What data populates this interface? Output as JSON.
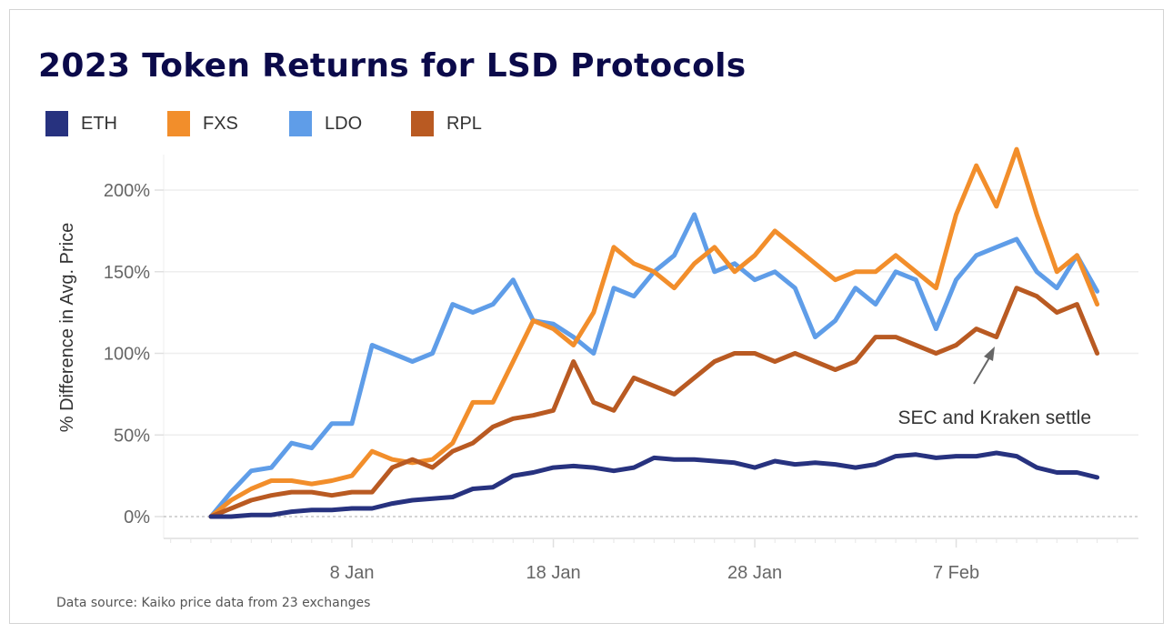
{
  "title": "2023 Token Returns for LSD Protocols",
  "source": "Data source: Kaiko price data from 23 exchanges",
  "chart_data": {
    "type": "line",
    "title": "2023 Token Returns for LSD Protocols",
    "xlabel": "",
    "ylabel": "% Difference in Avg. Price",
    "x_start": "2023-01-01",
    "x_end": "2023-02-14",
    "x_ticks": [
      {
        "date": "2023-01-08",
        "label": "8 Jan"
      },
      {
        "date": "2023-01-18",
        "label": "18 Jan"
      },
      {
        "date": "2023-01-28",
        "label": "28 Jan"
      },
      {
        "date": "2023-02-07",
        "label": "7 Feb"
      }
    ],
    "y_ticks": [
      {
        "value": 0,
        "label": "0%"
      },
      {
        "value": 50,
        "label": "50%"
      },
      {
        "value": 100,
        "label": "100%"
      },
      {
        "value": 150,
        "label": "150%"
      },
      {
        "value": 200,
        "label": "200%"
      }
    ],
    "ylim": [
      -15,
      230
    ],
    "grid": true,
    "legend_placement": "top-left",
    "x": [
      "2023-01-01",
      "2023-01-02",
      "2023-01-03",
      "2023-01-04",
      "2023-01-05",
      "2023-01-06",
      "2023-01-07",
      "2023-01-08",
      "2023-01-09",
      "2023-01-10",
      "2023-01-11",
      "2023-01-12",
      "2023-01-13",
      "2023-01-14",
      "2023-01-15",
      "2023-01-16",
      "2023-01-17",
      "2023-01-18",
      "2023-01-19",
      "2023-01-20",
      "2023-01-21",
      "2023-01-22",
      "2023-01-23",
      "2023-01-24",
      "2023-01-25",
      "2023-01-26",
      "2023-01-27",
      "2023-01-28",
      "2023-01-29",
      "2023-01-30",
      "2023-01-31",
      "2023-02-01",
      "2023-02-02",
      "2023-02-03",
      "2023-02-04",
      "2023-02-05",
      "2023-02-06",
      "2023-02-07",
      "2023-02-08",
      "2023-02-09",
      "2023-02-10",
      "2023-02-11",
      "2023-02-12",
      "2023-02-13",
      "2023-02-14"
    ],
    "series": [
      {
        "name": "ETH",
        "color": "#27327f",
        "values": [
          0,
          0,
          1,
          1,
          3,
          4,
          4,
          5,
          5,
          8,
          10,
          11,
          12,
          17,
          18,
          25,
          27,
          30,
          31,
          30,
          28,
          30,
          36,
          35,
          35,
          34,
          33,
          30,
          34,
          32,
          33,
          32,
          30,
          32,
          37,
          38,
          36,
          37,
          37,
          39,
          37,
          30,
          27,
          27,
          24
        ]
      },
      {
        "name": "FXS",
        "color": "#f28e2b",
        "values": [
          0,
          10,
          17,
          22,
          22,
          20,
          22,
          25,
          40,
          35,
          33,
          35,
          45,
          70,
          70,
          95,
          120,
          115,
          105,
          125,
          165,
          155,
          150,
          140,
          155,
          165,
          150,
          160,
          175,
          165,
          155,
          145,
          150,
          150,
          160,
          150,
          140,
          185,
          215,
          190,
          225,
          185,
          150,
          160,
          130
        ]
      },
      {
        "name": "LDO",
        "color": "#5f9de8",
        "values": [
          0,
          15,
          28,
          30,
          45,
          42,
          57,
          57,
          105,
          100,
          95,
          100,
          130,
          125,
          130,
          145,
          120,
          118,
          110,
          100,
          140,
          135,
          150,
          160,
          185,
          150,
          155,
          145,
          150,
          140,
          110,
          120,
          140,
          130,
          150,
          145,
          115,
          145,
          160,
          165,
          170,
          150,
          140,
          160,
          138
        ]
      },
      {
        "name": "RPL",
        "color": "#b95a22",
        "values": [
          0,
          5,
          10,
          13,
          15,
          15,
          13,
          15,
          15,
          30,
          35,
          30,
          40,
          45,
          55,
          60,
          62,
          65,
          95,
          70,
          65,
          85,
          80,
          75,
          85,
          95,
          100,
          100,
          95,
          100,
          95,
          90,
          95,
          110,
          110,
          105,
          100,
          105,
          115,
          110,
          140,
          135,
          125,
          130,
          100
        ]
      }
    ],
    "annotations": [
      {
        "text": "SEC and Kraken settle",
        "date": "2023-02-09",
        "value": 110
      }
    ]
  }
}
